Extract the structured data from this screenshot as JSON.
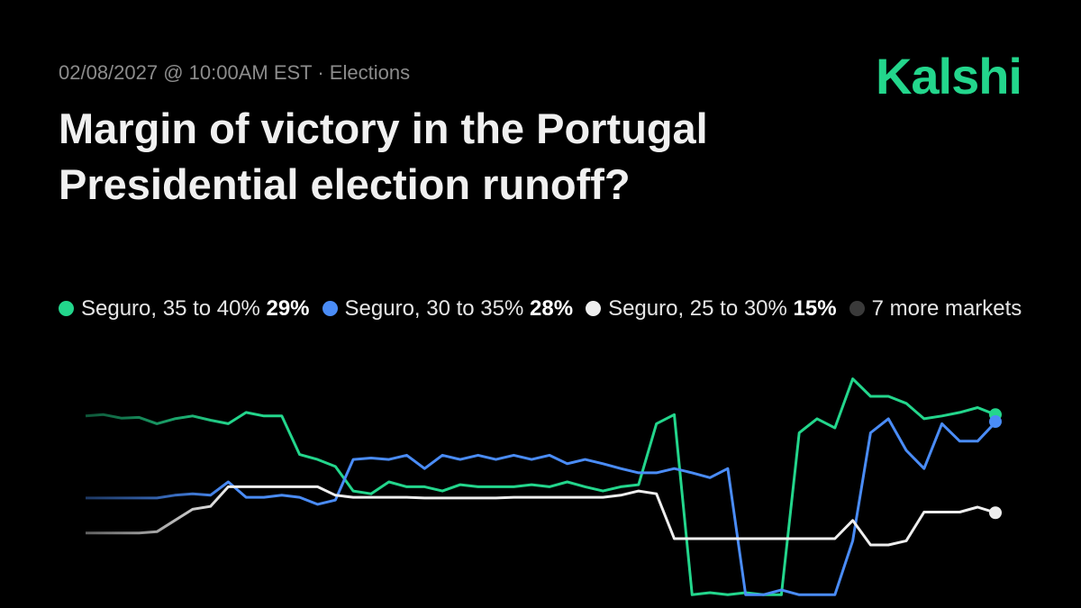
{
  "header": {
    "date": "02/08/2027",
    "time": "10:00AM EST",
    "category": "Elections",
    "brand": "Kalshi"
  },
  "chart_data": {
    "type": "line",
    "title": "Margin of victory in the Portugal Presidential election runoff?",
    "more_markets": "7 more markets",
    "ylim": [
      0,
      37
    ],
    "series": [
      {
        "name": "Seguro, 35 to 40%",
        "color": "#23d68c",
        "legend_value": 29,
        "legend_label": "29%",
        "values": [
          28.8,
          29.0,
          28.5,
          28.6,
          27.7,
          28.4,
          28.8,
          28.2,
          27.7,
          29.3,
          28.8,
          28.8,
          23.3,
          22.6,
          21.6,
          18.1,
          17.7,
          19.4,
          18.7,
          18.7,
          18.1,
          19.0,
          18.7,
          18.7,
          18.7,
          19.0,
          18.7,
          19.4,
          18.7,
          18.1,
          18.7,
          19.0,
          27.7,
          29.0,
          3.3,
          3.6,
          3.3,
          3.6,
          3.3,
          3.3,
          26.4,
          28.4,
          27.1,
          34.1,
          31.6,
          31.6,
          30.6,
          28.4,
          28.8,
          29.3,
          30.0,
          29.0
        ]
      },
      {
        "name": "Seguro, 30 to 35%",
        "color": "#4a8cf7",
        "legend_value": 28,
        "legend_label": "28%",
        "values": [
          17.1,
          17.1,
          17.1,
          17.1,
          17.1,
          17.5,
          17.7,
          17.5,
          19.4,
          17.2,
          17.2,
          17.5,
          17.2,
          16.2,
          16.8,
          22.6,
          22.8,
          22.6,
          23.2,
          21.3,
          23.2,
          22.6,
          23.2,
          22.6,
          23.2,
          22.6,
          23.2,
          22.0,
          22.6,
          22.0,
          21.3,
          20.7,
          20.7,
          21.3,
          20.7,
          20.0,
          21.3,
          3.3,
          3.3,
          4.0,
          3.3,
          3.3,
          3.3,
          11.0,
          26.4,
          28.4,
          23.9,
          21.3,
          27.7,
          25.2,
          25.2,
          27.9
        ]
      },
      {
        "name": "Seguro, 25 to 30%",
        "color": "#eeeeee",
        "legend_value": 15,
        "legend_label": "15%",
        "values": [
          12.1,
          12.1,
          12.1,
          12.1,
          12.3,
          13.9,
          15.5,
          15.9,
          18.7,
          18.7,
          18.7,
          18.7,
          18.7,
          18.7,
          17.5,
          17.2,
          17.2,
          17.2,
          17.2,
          17.1,
          17.1,
          17.1,
          17.1,
          17.1,
          17.2,
          17.2,
          17.2,
          17.2,
          17.2,
          17.2,
          17.5,
          18.1,
          17.7,
          11.3,
          11.3,
          11.3,
          11.3,
          11.3,
          11.3,
          11.3,
          11.3,
          11.3,
          11.3,
          13.9,
          10.4,
          10.4,
          11.0,
          15.1,
          15.1,
          15.1,
          15.8,
          15.0
        ]
      }
    ]
  }
}
